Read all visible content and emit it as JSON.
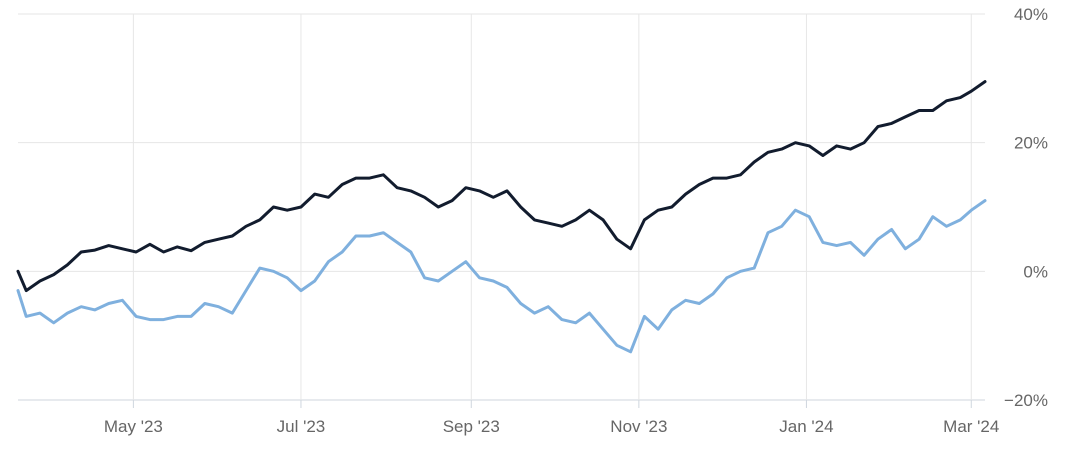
{
  "chart_data": {
    "type": "line",
    "title": "",
    "xlabel": "",
    "ylabel": "",
    "x_ticks": [
      "May '23",
      "Jul '23",
      "Sep '23",
      "Nov '23",
      "Jan '24",
      "Mar '24"
    ],
    "y_ticks": [
      "40%",
      "20%",
      "0%",
      "−20%"
    ],
    "ylim": [
      -20,
      40
    ],
    "xlim": [
      "2023-03-20",
      "2024-03-06"
    ],
    "grid": true,
    "series": [
      {
        "color": "#121c2e",
        "points": [
          [
            "2023-03-20",
            0.0
          ],
          [
            "2023-03-23",
            -3.0
          ],
          [
            "2023-03-28",
            -1.5
          ],
          [
            "2023-04-02",
            -0.5
          ],
          [
            "2023-04-07",
            1.0
          ],
          [
            "2023-04-12",
            3.0
          ],
          [
            "2023-04-17",
            3.3
          ],
          [
            "2023-04-22",
            4.0
          ],
          [
            "2023-04-27",
            3.5
          ],
          [
            "2023-05-02",
            3.0
          ],
          [
            "2023-05-07",
            4.2
          ],
          [
            "2023-05-12",
            3.0
          ],
          [
            "2023-05-17",
            3.8
          ],
          [
            "2023-05-22",
            3.2
          ],
          [
            "2023-05-27",
            4.5
          ],
          [
            "2023-06-01",
            5.0
          ],
          [
            "2023-06-06",
            5.5
          ],
          [
            "2023-06-11",
            7.0
          ],
          [
            "2023-06-16",
            8.0
          ],
          [
            "2023-06-21",
            10.0
          ],
          [
            "2023-06-26",
            9.5
          ],
          [
            "2023-07-01",
            10.0
          ],
          [
            "2023-07-06",
            12.0
          ],
          [
            "2023-07-11",
            11.5
          ],
          [
            "2023-07-16",
            13.5
          ],
          [
            "2023-07-21",
            14.5
          ],
          [
            "2023-07-26",
            14.5
          ],
          [
            "2023-07-31",
            15.0
          ],
          [
            "2023-08-05",
            13.0
          ],
          [
            "2023-08-10",
            12.5
          ],
          [
            "2023-08-15",
            11.5
          ],
          [
            "2023-08-20",
            10.0
          ],
          [
            "2023-08-25",
            11.0
          ],
          [
            "2023-08-30",
            13.0
          ],
          [
            "2023-09-04",
            12.5
          ],
          [
            "2023-09-09",
            11.5
          ],
          [
            "2023-09-14",
            12.5
          ],
          [
            "2023-09-19",
            10.0
          ],
          [
            "2023-09-24",
            8.0
          ],
          [
            "2023-09-29",
            7.5
          ],
          [
            "2023-10-04",
            7.0
          ],
          [
            "2023-10-09",
            8.0
          ],
          [
            "2023-10-14",
            9.5
          ],
          [
            "2023-10-19",
            8.0
          ],
          [
            "2023-10-24",
            5.0
          ],
          [
            "2023-10-29",
            3.5
          ],
          [
            "2023-11-03",
            8.0
          ],
          [
            "2023-11-08",
            9.5
          ],
          [
            "2023-11-13",
            10.0
          ],
          [
            "2023-11-18",
            12.0
          ],
          [
            "2023-11-23",
            13.5
          ],
          [
            "2023-11-28",
            14.5
          ],
          [
            "2023-12-03",
            14.5
          ],
          [
            "2023-12-08",
            15.0
          ],
          [
            "2023-12-13",
            17.0
          ],
          [
            "2023-12-18",
            18.5
          ],
          [
            "2023-12-23",
            19.0
          ],
          [
            "2023-12-28",
            20.0
          ],
          [
            "2024-01-02",
            19.5
          ],
          [
            "2024-01-07",
            18.0
          ],
          [
            "2024-01-12",
            19.5
          ],
          [
            "2024-01-17",
            19.0
          ],
          [
            "2024-01-22",
            20.0
          ],
          [
            "2024-01-27",
            22.5
          ],
          [
            "2024-02-01",
            23.0
          ],
          [
            "2024-02-06",
            24.0
          ],
          [
            "2024-02-11",
            25.0
          ],
          [
            "2024-02-16",
            25.0
          ],
          [
            "2024-02-21",
            26.5
          ],
          [
            "2024-02-26",
            27.0
          ],
          [
            "2024-03-01",
            28.0
          ],
          [
            "2024-03-06",
            29.5
          ]
        ]
      },
      {
        "color": "#7fb0de",
        "points": [
          [
            "2023-03-20",
            -3.0
          ],
          [
            "2023-03-23",
            -7.0
          ],
          [
            "2023-03-28",
            -6.5
          ],
          [
            "2023-04-02",
            -8.0
          ],
          [
            "2023-04-07",
            -6.5
          ],
          [
            "2023-04-12",
            -5.5
          ],
          [
            "2023-04-17",
            -6.0
          ],
          [
            "2023-04-22",
            -5.0
          ],
          [
            "2023-04-27",
            -4.5
          ],
          [
            "2023-05-02",
            -7.0
          ],
          [
            "2023-05-07",
            -7.5
          ],
          [
            "2023-05-12",
            -7.5
          ],
          [
            "2023-05-17",
            -7.0
          ],
          [
            "2023-05-22",
            -7.0
          ],
          [
            "2023-05-27",
            -5.0
          ],
          [
            "2023-06-01",
            -5.5
          ],
          [
            "2023-06-06",
            -6.5
          ],
          [
            "2023-06-11",
            -3.0
          ],
          [
            "2023-06-16",
            0.5
          ],
          [
            "2023-06-21",
            0.0
          ],
          [
            "2023-06-26",
            -1.0
          ],
          [
            "2023-07-01",
            -3.0
          ],
          [
            "2023-07-06",
            -1.5
          ],
          [
            "2023-07-11",
            1.5
          ],
          [
            "2023-07-16",
            3.0
          ],
          [
            "2023-07-21",
            5.5
          ],
          [
            "2023-07-26",
            5.5
          ],
          [
            "2023-07-31",
            6.0
          ],
          [
            "2023-08-05",
            4.5
          ],
          [
            "2023-08-10",
            3.0
          ],
          [
            "2023-08-15",
            -1.0
          ],
          [
            "2023-08-20",
            -1.5
          ],
          [
            "2023-08-25",
            0.0
          ],
          [
            "2023-08-30",
            1.5
          ],
          [
            "2023-09-04",
            -1.0
          ],
          [
            "2023-09-09",
            -1.5
          ],
          [
            "2023-09-14",
            -2.5
          ],
          [
            "2023-09-19",
            -5.0
          ],
          [
            "2023-09-24",
            -6.5
          ],
          [
            "2023-09-29",
            -5.5
          ],
          [
            "2023-10-04",
            -7.5
          ],
          [
            "2023-10-09",
            -8.0
          ],
          [
            "2023-10-14",
            -6.5
          ],
          [
            "2023-10-19",
            -9.0
          ],
          [
            "2023-10-24",
            -11.5
          ],
          [
            "2023-10-29",
            -12.5
          ],
          [
            "2023-11-03",
            -7.0
          ],
          [
            "2023-11-08",
            -9.0
          ],
          [
            "2023-11-13",
            -6.0
          ],
          [
            "2023-11-18",
            -4.5
          ],
          [
            "2023-11-23",
            -5.0
          ],
          [
            "2023-11-28",
            -3.5
          ],
          [
            "2023-12-03",
            -1.0
          ],
          [
            "2023-12-08",
            0.0
          ],
          [
            "2023-12-13",
            0.5
          ],
          [
            "2023-12-18",
            6.0
          ],
          [
            "2023-12-23",
            7.0
          ],
          [
            "2023-12-28",
            9.5
          ],
          [
            "2024-01-02",
            8.5
          ],
          [
            "2024-01-07",
            4.5
          ],
          [
            "2024-01-12",
            4.0
          ],
          [
            "2024-01-17",
            4.5
          ],
          [
            "2024-01-22",
            2.5
          ],
          [
            "2024-01-27",
            5.0
          ],
          [
            "2024-02-01",
            6.5
          ],
          [
            "2024-02-06",
            3.5
          ],
          [
            "2024-02-11",
            5.0
          ],
          [
            "2024-02-16",
            8.5
          ],
          [
            "2024-02-21",
            7.0
          ],
          [
            "2024-02-26",
            8.0
          ],
          [
            "2024-03-01",
            9.5
          ],
          [
            "2024-03-06",
            11.0
          ]
        ]
      }
    ]
  }
}
